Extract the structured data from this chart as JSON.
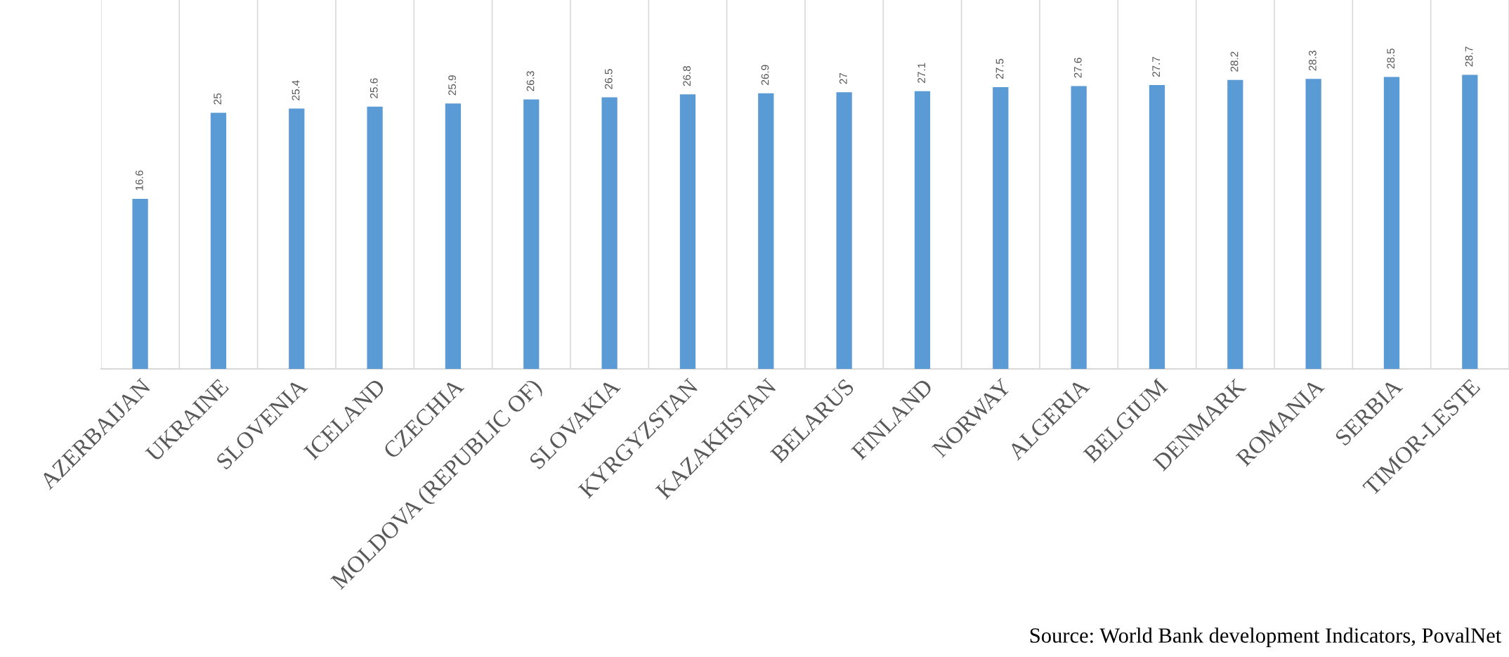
{
  "chart_data": {
    "type": "bar",
    "categories": [
      "AZERBAIJAN",
      "UKRAINE",
      "SLOVENIA",
      "ICELAND",
      "CZECHIA",
      "MOLDOVA (REPUBLIC OF)",
      "SLOVAKIA",
      "KYRGYZSTAN",
      "KAZAKHSTAN",
      "BELARUS",
      "FINLAND",
      "NORWAY",
      "ALGERIA",
      "BELGIUM",
      "DENMARK",
      "ROMANIA",
      "SERBIA",
      "TIMOR-LESTE"
    ],
    "values": [
      16.6,
      25,
      25.4,
      25.6,
      25.9,
      26.3,
      26.5,
      26.8,
      26.9,
      27,
      27.1,
      27.5,
      27.6,
      27.7,
      28.2,
      28.3,
      28.5,
      28.7
    ],
    "color": "#5b9bd5",
    "ylim": [
      0,
      36
    ],
    "tick_labels": "x",
    "grid": "x",
    "data_labels": true,
    "annotations": [
      "Source: World Bank development Indicators, PovalNet"
    ]
  }
}
